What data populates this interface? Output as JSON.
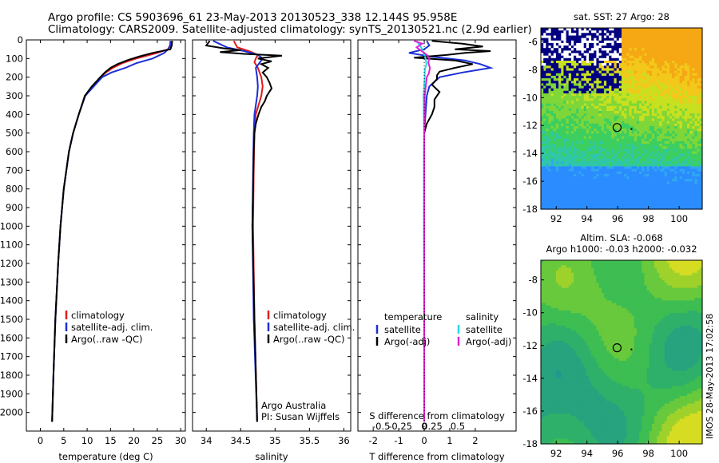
{
  "header": {
    "line1": "Argo profile: CS 5903696_61 23-May-2013 20130523_338 12.144S 95.958E",
    "line2": "Climatology: CARS2009. Satellite-adjusted climatology: synTS_20130521.nc (2.9d earlier)"
  },
  "side_label": "IMOS 28-May-2013 17:02:58",
  "colors": {
    "climatology": "#e11b1b",
    "satellite": "#1a2fd6",
    "argo": "#000000",
    "sal_sat": "#27d9e6",
    "sal_argo": "#e021d3"
  },
  "chart_data": [
    {
      "type": "line",
      "title": "",
      "xlabel": "temperature (deg C)",
      "ylabel": "",
      "xlim": [
        -3,
        31
      ],
      "ylim": [
        0,
        2100
      ],
      "xticks": [
        0,
        5,
        10,
        15,
        20,
        25,
        30
      ],
      "yticks": [
        0,
        100,
        200,
        300,
        400,
        500,
        600,
        700,
        800,
        900,
        1000,
        1100,
        1200,
        1300,
        1400,
        1500,
        1600,
        1700,
        1800,
        1900,
        2000
      ],
      "legend": [
        "climatology",
        "satellite-adj. clim.",
        "Argo(..raw -QC)"
      ],
      "series": [
        {
          "name": "climatology",
          "color": "#e11b1b",
          "depth": [
            5,
            30,
            50,
            70,
            100,
            125,
            150,
            175,
            200,
            250,
            300,
            400,
            500,
            600,
            800,
            1000,
            1200,
            1500,
            1800,
            2050
          ],
          "values": [
            27.8,
            27.7,
            27.3,
            25,
            20.5,
            17.5,
            15.5,
            14,
            12.9,
            11.2,
            9.6,
            8.2,
            7.0,
            6.1,
            5.0,
            4.3,
            3.8,
            3.2,
            2.8,
            2.5
          ]
        },
        {
          "name": "satellite-adj. clim.",
          "color": "#1a2fd6",
          "depth": [
            5,
            30,
            50,
            70,
            100,
            125,
            150,
            175,
            200,
            250,
            300,
            400,
            500,
            600,
            800,
            1000,
            1200,
            1500,
            1800,
            2050
          ],
          "values": [
            27.9,
            27.8,
            27.3,
            26.5,
            24,
            20.5,
            18.2,
            15.2,
            13.2,
            11.4,
            9.6,
            8.2,
            7.0,
            6.1,
            5.0,
            4.3,
            3.8,
            3.2,
            2.8,
            2.5
          ]
        },
        {
          "name": "Argo(..raw -QC)",
          "color": "#000000",
          "depth": [
            5,
            30,
            50,
            70,
            90,
            110,
            130,
            150,
            175,
            200,
            250,
            300,
            400,
            500,
            600,
            800,
            1000,
            1200,
            1500,
            1800,
            2050
          ],
          "values": [
            28.2,
            28.1,
            27.8,
            24,
            21,
            18.5,
            16.5,
            15,
            13.8,
            12.8,
            11,
            9.5,
            8.2,
            7,
            6.1,
            5,
            4.3,
            3.8,
            3.2,
            2.8,
            2.5
          ]
        }
      ]
    },
    {
      "type": "line",
      "xlabel": "salinity",
      "xlim": [
        33.8,
        36.1
      ],
      "ylim": [
        0,
        2100
      ],
      "xticks": [
        34,
        34.5,
        35,
        35.5,
        36
      ],
      "xtick_labels": [
        "34",
        "34.5",
        "35",
        "35.5",
        "36"
      ],
      "legend": [
        "climatology",
        "satellite-adj. clim.",
        "Argo(..raw -QC)"
      ],
      "annotation": [
        "Argo Australia",
        "PI: Susan Wijffels"
      ],
      "series": [
        {
          "name": "climatology",
          "color": "#e11b1b",
          "depth": [
            5,
            40,
            60,
            80,
            100,
            120,
            150,
            200,
            250,
            300,
            350,
            400,
            500,
            700,
            1000,
            1500,
            2050
          ],
          "values": [
            34.4,
            34.45,
            34.62,
            34.75,
            34.72,
            34.7,
            34.75,
            34.8,
            34.82,
            34.8,
            34.76,
            34.72,
            34.7,
            34.69,
            34.68,
            34.7,
            34.74
          ]
        },
        {
          "name": "satellite-adj. clim.",
          "color": "#1a2fd6",
          "depth": [
            5,
            40,
            60,
            80,
            100,
            120,
            150,
            200,
            250,
            300,
            350,
            400,
            500,
            700,
            1000,
            1500,
            2050
          ],
          "values": [
            34.1,
            34.3,
            34.55,
            34.75,
            34.82,
            34.78,
            34.72,
            34.74,
            34.75,
            34.74,
            34.72,
            34.7,
            34.69,
            34.68,
            34.67,
            34.69,
            34.74
          ]
        },
        {
          "name": "Argo(..raw -QC)",
          "color": "#000000",
          "depth": [
            5,
            30,
            45,
            55,
            65,
            75,
            85,
            100,
            115,
            130,
            150,
            175,
            200,
            230,
            260,
            300,
            330,
            360,
            400,
            450,
            500,
            600,
            800,
            1000,
            1500,
            2050
          ],
          "values": [
            34.05,
            34.0,
            34.25,
            34.5,
            34.2,
            34.55,
            35.1,
            34.75,
            34.95,
            34.8,
            34.9,
            34.82,
            34.88,
            34.92,
            34.95,
            34.88,
            34.85,
            34.8,
            34.76,
            34.72,
            34.7,
            34.69,
            34.68,
            34.67,
            34.7,
            34.74
          ]
        }
      ]
    },
    {
      "type": "line",
      "xlabel": "T difference from climatology",
      "xlabel_top": "S difference from climatology",
      "xlim": [
        -2.6,
        3.6
      ],
      "ylim": [
        0,
        2100
      ],
      "xticks": [
        -2,
        -1,
        0,
        1,
        2
      ],
      "xtick_labels": [
        "-2",
        "-1",
        "0",
        "1",
        "2"
      ],
      "top_ticks": [
        -0.5,
        -0.25,
        0,
        0.25,
        0.5
      ],
      "top_tick_labels": [
        "-0.5",
        "-0.25",
        "0",
        "0.25",
        "0.5"
      ],
      "legend_headers": [
        "temperature",
        "salinity"
      ],
      "legend": [
        "satellite",
        "Argo(-adj)",
        "satellite",
        "Argo(-adj)"
      ],
      "series": [
        {
          "name": "T satellite",
          "color": "#1a2fd6",
          "depth": [
            5,
            30,
            50,
            70,
            90,
            110,
            130,
            150,
            175,
            200,
            250,
            300,
            400,
            500,
            700,
            1000,
            1500,
            2050
          ],
          "values": [
            0.1,
            0.2,
            0,
            -0.6,
            0.3,
            1.6,
            2.2,
            2.6,
            1.5,
            0.6,
            0.2,
            0.1,
            0.05,
            0,
            0,
            0,
            0,
            0
          ]
        },
        {
          "name": "T Argo(-adj)",
          "color": "#000000",
          "depth": [
            5,
            20,
            35,
            50,
            60,
            70,
            80,
            95,
            110,
            130,
            150,
            170,
            190,
            210,
            240,
            280,
            320,
            360,
            400,
            450,
            500,
            600,
            800,
            1000,
            1500,
            2050
          ],
          "values": [
            0.3,
            1.5,
            2.3,
            1.2,
            2.6,
            1.6,
            0.9,
            -0.4,
            1.2,
            1.9,
            1.2,
            0.6,
            0.5,
            0.5,
            0.3,
            0.6,
            0.4,
            0.4,
            0.3,
            0.1,
            0.0,
            0.0,
            0.0,
            0.0,
            0.0,
            0.0
          ]
        },
        {
          "name": "S satellite",
          "color": "#27d9e6",
          "depth": [
            5,
            40,
            70,
            100,
            130,
            160,
            200,
            300,
            400,
            500,
            600,
            800,
            1000,
            1500,
            2050
          ],
          "values": [
            -0.3,
            -0.12,
            -0.02,
            0.05,
            0.09,
            0.02,
            0.02,
            -0.03,
            -0.02,
            0.0,
            -0.01,
            -0.01,
            -0.01,
            0,
            0
          ]
        },
        {
          "name": "S Argo(-adj)",
          "color": "#e021d3",
          "depth": [
            5,
            20,
            40,
            60,
            80,
            100,
            120,
            150,
            180,
            200,
            250,
            300,
            400,
            500,
            700,
            1000,
            1500,
            2050
          ],
          "values": [
            -0.4,
            -0.08,
            -0.3,
            -0.1,
            0.1,
            0.2,
            0.16,
            0.22,
            0.18,
            0.1,
            0.06,
            0.02,
            0.01,
            0,
            0,
            0,
            0,
            0
          ]
        }
      ]
    },
    {
      "type": "heatmap",
      "title": "sat. SST: 27 Argo: 28",
      "xlim": [
        91,
        101.5
      ],
      "ylim": [
        -18,
        -5
      ],
      "xticks": [
        92,
        94,
        96,
        98,
        100
      ],
      "yticks": [
        -6,
        -8,
        -10,
        -12,
        -14,
        -16,
        -18
      ],
      "marker": [
        95.96,
        -12.14
      ]
    },
    {
      "type": "heatmap",
      "title": "Altim. SLA: -0.068",
      "subtitle": "Argo h1000: -0.03 h2000: -0.032",
      "xlim": [
        91,
        101.5
      ],
      "ylim": [
        -18,
        -6.8
      ],
      "xticks": [
        92,
        94,
        96,
        98,
        100
      ],
      "yticks": [
        -8,
        -10,
        -12,
        -14,
        -16,
        -18
      ],
      "marker": [
        95.96,
        -12.14
      ]
    }
  ]
}
